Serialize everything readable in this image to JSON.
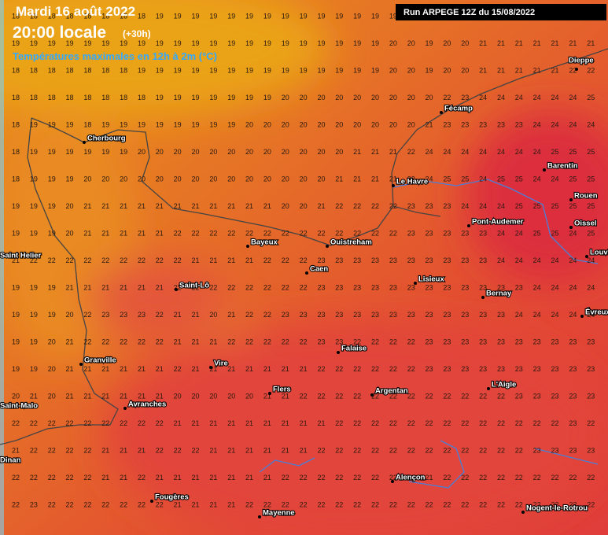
{
  "header": {
    "date": "Mardi 16 août 2022",
    "time": "20:00 locale",
    "lead": "(+30h)",
    "subtitle": "Températures maximales en 12h à 2m (°C)",
    "run": "Run ARPEGE 12Z du 15/08/2022"
  },
  "grid": {
    "values": [
      [
        18,
        18,
        18,
        18,
        18,
        18,
        18,
        18,
        19,
        19,
        19,
        19,
        19,
        19,
        19,
        19,
        19,
        19,
        19,
        19,
        19,
        19,
        19,
        19,
        19,
        19,
        19,
        19,
        19,
        19,
        19,
        19,
        19
      ],
      [
        19,
        19,
        19,
        19,
        19,
        19,
        19,
        19,
        19,
        19,
        19,
        19,
        19,
        19,
        19,
        19,
        19,
        19,
        19,
        19,
        19,
        20,
        20,
        19,
        20,
        20,
        21,
        21,
        21,
        21,
        21,
        21,
        21
      ],
      [
        18,
        18,
        18,
        18,
        18,
        18,
        18,
        19,
        19,
        19,
        19,
        19,
        19,
        19,
        19,
        19,
        19,
        19,
        19,
        19,
        19,
        20,
        20,
        19,
        20,
        20,
        21,
        21,
        21,
        21,
        21,
        22,
        22
      ],
      [
        18,
        18,
        18,
        18,
        18,
        18,
        18,
        18,
        19,
        19,
        19,
        19,
        19,
        19,
        19,
        20,
        20,
        20,
        20,
        20,
        20,
        20,
        20,
        20,
        22,
        23,
        24,
        24,
        24,
        24,
        24,
        24,
        25
      ],
      [
        18,
        19,
        19,
        19,
        18,
        19,
        19,
        19,
        19,
        19,
        19,
        19,
        19,
        20,
        20,
        20,
        20,
        20,
        20,
        20,
        20,
        20,
        20,
        21,
        23,
        23,
        23,
        23,
        23,
        24,
        24,
        24,
        24
      ],
      [
        18,
        19,
        19,
        19,
        19,
        19,
        19,
        20,
        20,
        20,
        20,
        20,
        20,
        20,
        20,
        20,
        20,
        20,
        20,
        21,
        21,
        21,
        22,
        24,
        24,
        24,
        24,
        24,
        24,
        24,
        25,
        25,
        25
      ],
      [
        18,
        19,
        19,
        19,
        20,
        20,
        20,
        20,
        20,
        20,
        20,
        20,
        20,
        20,
        20,
        20,
        20,
        20,
        21,
        21,
        21,
        21,
        23,
        24,
        25,
        25,
        24,
        25,
        25,
        24,
        24,
        25,
        25
      ],
      [
        19,
        19,
        19,
        20,
        21,
        21,
        21,
        21,
        21,
        21,
        21,
        21,
        21,
        21,
        21,
        20,
        20,
        21,
        22,
        22,
        22,
        22,
        23,
        23,
        23,
        24,
        24,
        24,
        25,
        25,
        25,
        25,
        25
      ],
      [
        19,
        19,
        19,
        20,
        21,
        21,
        21,
        21,
        21,
        22,
        22,
        22,
        22,
        22,
        22,
        22,
        22,
        22,
        22,
        22,
        22,
        22,
        23,
        23,
        23,
        23,
        23,
        24,
        24,
        25,
        25,
        24,
        25
      ],
      [
        21,
        22,
        22,
        22,
        22,
        22,
        22,
        22,
        22,
        22,
        21,
        21,
        21,
        21,
        22,
        22,
        22,
        23,
        23,
        23,
        23,
        23,
        23,
        23,
        23,
        23,
        23,
        24,
        24,
        24,
        24,
        24,
        24
      ],
      [
        19,
        19,
        19,
        21,
        21,
        21,
        21,
        21,
        21,
        22,
        22,
        22,
        22,
        22,
        22,
        22,
        22,
        23,
        23,
        23,
        23,
        23,
        23,
        23,
        23,
        23,
        23,
        23,
        23,
        24,
        24,
        24,
        24
      ],
      [
        19,
        19,
        19,
        20,
        22,
        23,
        23,
        23,
        22,
        21,
        21,
        20,
        21,
        22,
        22,
        23,
        23,
        23,
        23,
        23,
        23,
        23,
        23,
        23,
        23,
        23,
        23,
        23,
        24,
        24,
        24,
        24,
        24
      ],
      [
        19,
        19,
        20,
        21,
        22,
        22,
        22,
        22,
        22,
        21,
        21,
        21,
        22,
        22,
        22,
        22,
        22,
        23,
        23,
        22,
        22,
        22,
        22,
        23,
        23,
        23,
        23,
        23,
        23,
        23,
        23,
        23,
        23
      ],
      [
        19,
        19,
        20,
        21,
        21,
        21,
        21,
        21,
        21,
        22,
        21,
        21,
        21,
        21,
        21,
        21,
        21,
        22,
        22,
        22,
        22,
        22,
        22,
        23,
        23,
        23,
        23,
        23,
        23,
        23,
        23,
        23,
        23
      ],
      [
        20,
        21,
        20,
        21,
        21,
        21,
        21,
        21,
        21,
        20,
        20,
        20,
        20,
        20,
        21,
        21,
        22,
        22,
        22,
        22,
        22,
        22,
        22,
        22,
        22,
        22,
        22,
        22,
        23,
        23,
        23,
        23,
        23
      ],
      [
        22,
        22,
        22,
        22,
        22,
        22,
        22,
        22,
        22,
        21,
        21,
        21,
        21,
        21,
        21,
        21,
        21,
        21,
        22,
        22,
        22,
        22,
        22,
        22,
        22,
        22,
        22,
        22,
        22,
        22,
        22,
        23,
        22
      ],
      [
        21,
        22,
        22,
        22,
        22,
        21,
        21,
        21,
        22,
        22,
        22,
        21,
        21,
        21,
        21,
        21,
        21,
        22,
        22,
        22,
        22,
        22,
        22,
        22,
        22,
        22,
        22,
        22,
        22,
        23,
        23,
        23,
        23
      ],
      [
        22,
        22,
        22,
        22,
        22,
        21,
        21,
        22,
        21,
        21,
        21,
        21,
        21,
        21,
        21,
        22,
        22,
        22,
        22,
        22,
        22,
        22,
        22,
        21,
        22,
        22,
        22,
        22,
        22,
        22,
        22,
        22,
        22
      ],
      [
        22,
        23,
        22,
        22,
        22,
        22,
        22,
        22,
        22,
        21,
        21,
        21,
        21,
        22,
        22,
        22,
        22,
        22,
        22,
        22,
        22,
        22,
        22,
        22,
        22,
        22,
        22,
        22,
        22,
        22,
        22,
        22,
        22
      ]
    ]
  },
  "cities": [
    "Cherbourg",
    "Dieppe",
    "Fécamp",
    "Barentin",
    "Le Havre",
    "Rouen",
    "Pont-Audemer",
    "Oissel",
    "Bayeux",
    "Ouistreham",
    "Louviers",
    "Caen",
    "Saint Helier",
    "Lisieux",
    "Saint-Lô",
    "Bernay",
    "Évreux",
    "Falaise",
    "Granville",
    "Vire",
    "Flers",
    "Argentan",
    "L'Aigle",
    "Avranches",
    "Saint-Malo",
    "Dinan",
    "Alençon",
    "Fougères",
    "Nogent-le-Rotrou",
    "Mayenne"
  ]
}
